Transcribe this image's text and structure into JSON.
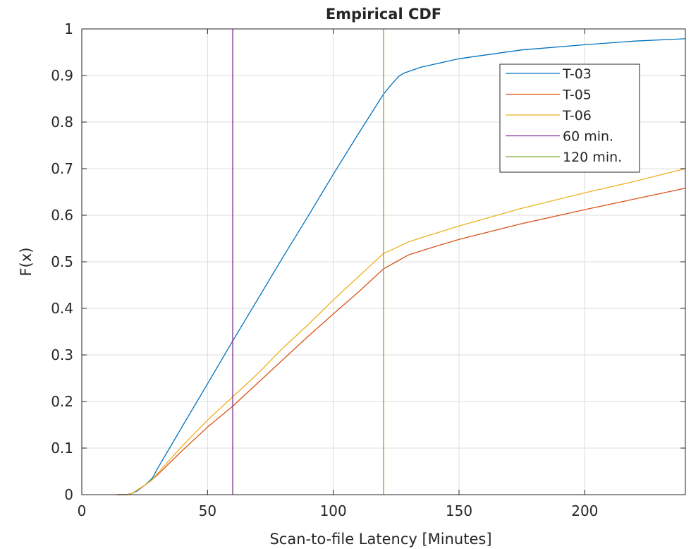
{
  "chart_data": {
    "type": "line",
    "title": "Empirical CDF",
    "xlabel": "Scan-to-file Latency [Minutes]",
    "ylabel": "F(x)",
    "xlim": [
      0,
      240
    ],
    "ylim": [
      0,
      1
    ],
    "xticks": [
      0,
      50,
      100,
      150,
      200
    ],
    "yticks": [
      0,
      0.1,
      0.2,
      0.3,
      0.4,
      0.5,
      0.6,
      0.7,
      0.8,
      0.9,
      1
    ],
    "xtick_labels": [
      "0",
      "50",
      "100",
      "150",
      "200"
    ],
    "ytick_labels": [
      "0",
      "0.1",
      "0.2",
      "0.3",
      "0.4",
      "0.5",
      "0.6",
      "0.7",
      "0.8",
      "0.9",
      "1"
    ],
    "grid": true,
    "legend_position": "top-right",
    "series": [
      {
        "name": "T-03",
        "color": "#0072BD",
        "points": [
          [
            14,
            0
          ],
          [
            18,
            0
          ],
          [
            20,
            0.003
          ],
          [
            22,
            0.008
          ],
          [
            25,
            0.02
          ],
          [
            28,
            0.035
          ],
          [
            30,
            0.055
          ],
          [
            40,
            0.147
          ],
          [
            50,
            0.238
          ],
          [
            60,
            0.33
          ],
          [
            70,
            0.42
          ],
          [
            80,
            0.51
          ],
          [
            90,
            0.598
          ],
          [
            100,
            0.688
          ],
          [
            110,
            0.775
          ],
          [
            120,
            0.86
          ],
          [
            123,
            0.88
          ],
          [
            126,
            0.898
          ],
          [
            128,
            0.905
          ],
          [
            135,
            0.918
          ],
          [
            150,
            0.936
          ],
          [
            175,
            0.955
          ],
          [
            200,
            0.966
          ],
          [
            220,
            0.974
          ],
          [
            240,
            0.979
          ]
        ]
      },
      {
        "name": "T-05",
        "color": "#D95319",
        "points": [
          [
            14,
            0
          ],
          [
            18,
            0
          ],
          [
            20,
            0.003
          ],
          [
            22,
            0.01
          ],
          [
            25,
            0.02
          ],
          [
            28,
            0.032
          ],
          [
            30,
            0.042
          ],
          [
            40,
            0.095
          ],
          [
            50,
            0.145
          ],
          [
            60,
            0.19
          ],
          [
            70,
            0.24
          ],
          [
            80,
            0.29
          ],
          [
            90,
            0.34
          ],
          [
            100,
            0.388
          ],
          [
            110,
            0.435
          ],
          [
            120,
            0.485
          ],
          [
            125,
            0.5
          ],
          [
            130,
            0.515
          ],
          [
            140,
            0.532
          ],
          [
            150,
            0.548
          ],
          [
            175,
            0.582
          ],
          [
            200,
            0.612
          ],
          [
            220,
            0.635
          ],
          [
            240,
            0.658
          ]
        ]
      },
      {
        "name": "T-06",
        "color": "#EDB120",
        "points": [
          [
            14,
            0
          ],
          [
            18,
            0
          ],
          [
            20,
            0.003
          ],
          [
            22,
            0.01
          ],
          [
            25,
            0.02
          ],
          [
            28,
            0.032
          ],
          [
            30,
            0.045
          ],
          [
            40,
            0.105
          ],
          [
            50,
            0.16
          ],
          [
            60,
            0.21
          ],
          [
            70,
            0.26
          ],
          [
            80,
            0.315
          ],
          [
            90,
            0.365
          ],
          [
            100,
            0.418
          ],
          [
            110,
            0.468
          ],
          [
            120,
            0.518
          ],
          [
            125,
            0.53
          ],
          [
            130,
            0.543
          ],
          [
            140,
            0.56
          ],
          [
            150,
            0.577
          ],
          [
            175,
            0.615
          ],
          [
            200,
            0.648
          ],
          [
            220,
            0.673
          ],
          [
            240,
            0.7
          ]
        ]
      },
      {
        "name": "60 min.",
        "color": "#7E2F8E",
        "points": [
          [
            60,
            0
          ],
          [
            60,
            1
          ]
        ]
      },
      {
        "name": "120 min.",
        "color": "#77AC30",
        "points": [
          [
            120,
            0
          ],
          [
            120,
            1
          ]
        ]
      }
    ]
  }
}
